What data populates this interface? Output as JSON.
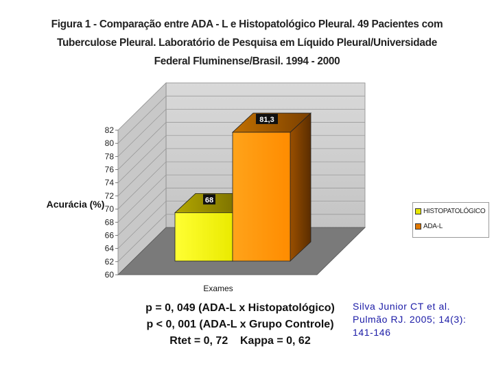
{
  "title": "Figura 1  - Comparação entre ADA - L e Histopatológico Pleural.  49 Pacientes com\nTuberculose Pleural. Laboratório de Pesquisa em Líquido Pleural/Universidade\nFederal Fluminense/Brasil. 1994 - 2000",
  "stats": [
    "p = 0, 049 (ADA-L x Histopatológico)",
    "p < 0, 001 (ADA-L x Grupo Controle)",
    "Rtet = 0, 72    Kappa = 0, 62"
  ],
  "citation": {
    "line1": "Silva Junior CT et al.",
    "line2": "Pulmão RJ.  2005; 14(3):",
    "line3": "141-146"
  },
  "chart_data": {
    "type": "bar",
    "style": "3d",
    "title": "",
    "xlabel": "Exames",
    "ylabel": "Acurácia (%)",
    "ylim": [
      60,
      82
    ],
    "yticks": [
      60,
      62,
      64,
      66,
      68,
      70,
      72,
      74,
      76,
      78,
      80,
      82
    ],
    "grid": true,
    "legend_position": "right",
    "series": [
      {
        "name": "HISTOPATOLÓGICO",
        "value": 68,
        "label": "68",
        "color": "#ffff00"
      },
      {
        "name": "ADA-L",
        "value": 81.3,
        "label": "81,3",
        "color": "#ff9900"
      }
    ]
  }
}
